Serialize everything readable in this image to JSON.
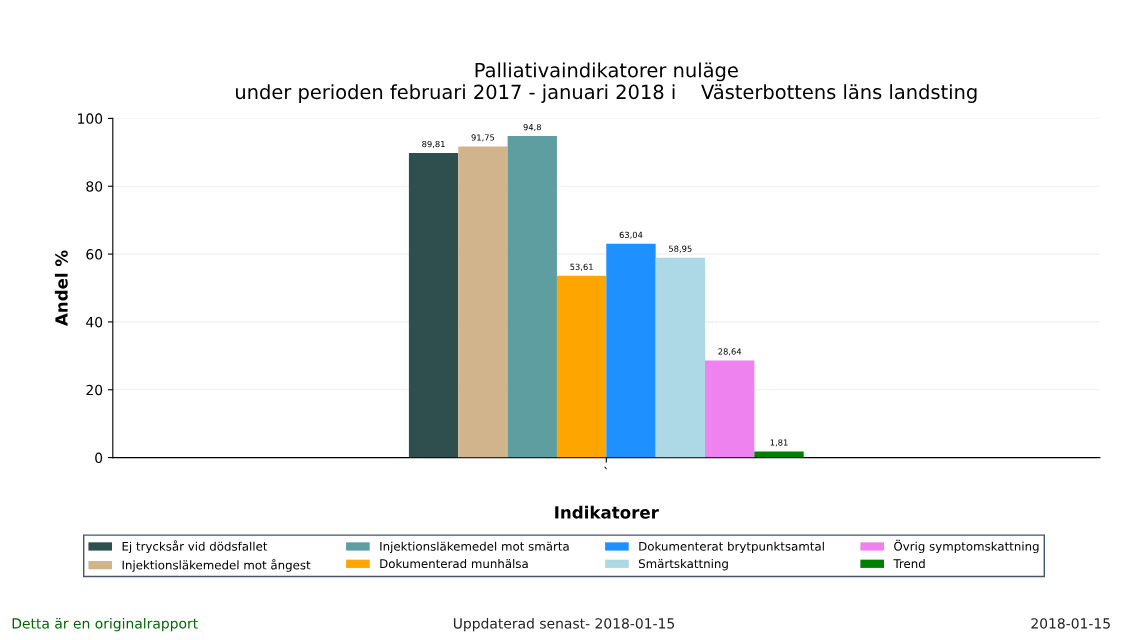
{
  "chart_data": {
    "type": "bar",
    "title": "Palliativaindikatorer nuläge\nunder perioden februari 2017 - januari 2018 i    Västerbottens läns landsting",
    "xlabel": "Indikatorer",
    "ylabel": "Andel %",
    "categories": [
      "`"
    ],
    "series": [
      {
        "name": "Ej trycksår vid dödsfallet",
        "color": "#2f4f4f",
        "values": [
          89.81
        ],
        "value_labels": [
          "89,81"
        ]
      },
      {
        "name": "Injektionsläkemedel mot ångest",
        "color": "#d2b48c",
        "values": [
          91.75
        ],
        "value_labels": [
          "91,75"
        ]
      },
      {
        "name": "Injektionsläkemedel mot smärta",
        "color": "#5f9ea0",
        "values": [
          94.8
        ],
        "value_labels": [
          "94,8"
        ]
      },
      {
        "name": "Dokumenterad munhälsa",
        "color": "#ffa500",
        "values": [
          53.61
        ],
        "value_labels": [
          "53,61"
        ]
      },
      {
        "name": "Dokumenterat brytpunktsamtal",
        "color": "#1e90ff",
        "values": [
          63.04
        ],
        "value_labels": [
          "63,04"
        ]
      },
      {
        "name": "Smärtskattning",
        "color": "#add8e6",
        "values": [
          58.95
        ],
        "value_labels": [
          "58,95"
        ]
      },
      {
        "name": "Övrig symptomskattning",
        "color": "#ee82ee",
        "values": [
          28.64
        ],
        "value_labels": [
          "28,64"
        ]
      },
      {
        "name": "Trend",
        "color": "#008000",
        "values": [
          1.81
        ],
        "value_labels": [
          "1,81"
        ]
      }
    ],
    "ylim": [
      0,
      100
    ],
    "yticks": [
      0,
      20,
      40,
      60,
      80,
      100
    ],
    "grid": "y",
    "legend": "bottom",
    "annotations": [
      "Detta är en originalrapport",
      "Uppdaterad senast- 2018-01-15",
      "2018-01-15"
    ]
  }
}
